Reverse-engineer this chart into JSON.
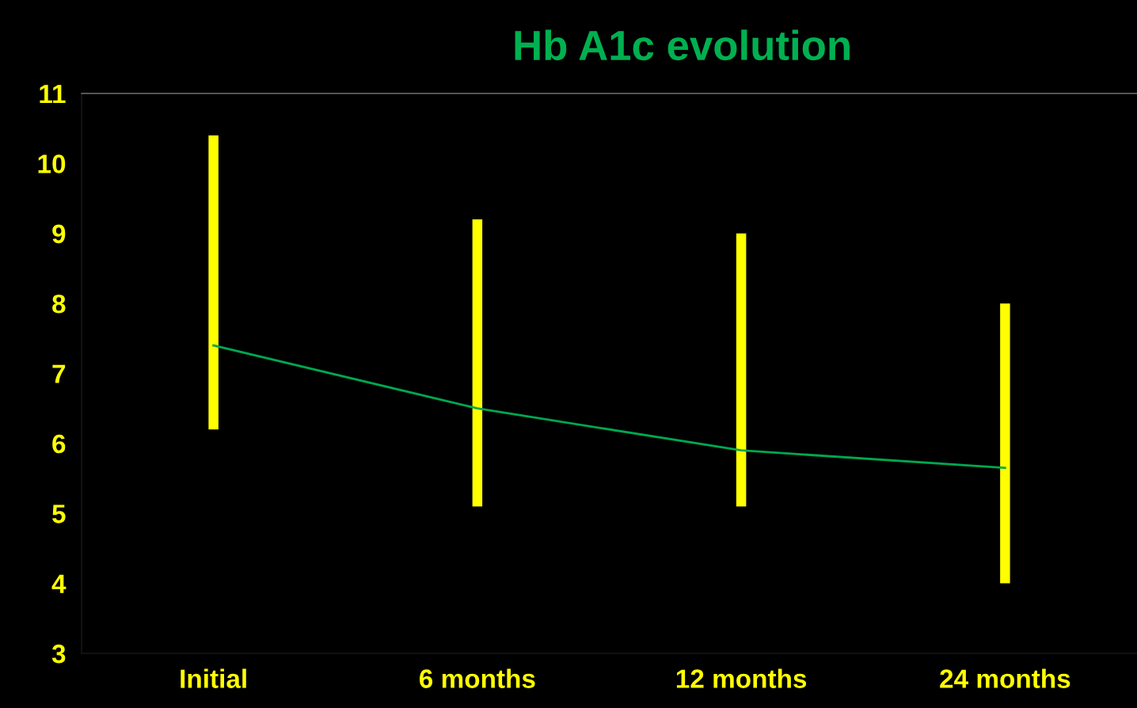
{
  "chart_data": {
    "type": "line",
    "title": "Hb A1c evolution",
    "categories": [
      "Initial",
      "6 months",
      "12 months",
      "24 months"
    ],
    "series": [
      {
        "color": "#00a84f",
        "values": [
          7.4,
          6.5,
          5.9,
          5.65
        ],
        "errors": [
          [
            6.2,
            10.4
          ],
          [
            5.1,
            9.2
          ],
          [
            5.1,
            9.0
          ],
          [
            4.0,
            8.0
          ]
        ]
      }
    ],
    "ylim": [
      3,
      11
    ],
    "yticks": [
      3,
      4,
      5,
      6,
      7,
      8,
      9,
      10,
      11
    ],
    "grid": false,
    "legend": false,
    "marker": "none",
    "line_style": "solid"
  }
}
